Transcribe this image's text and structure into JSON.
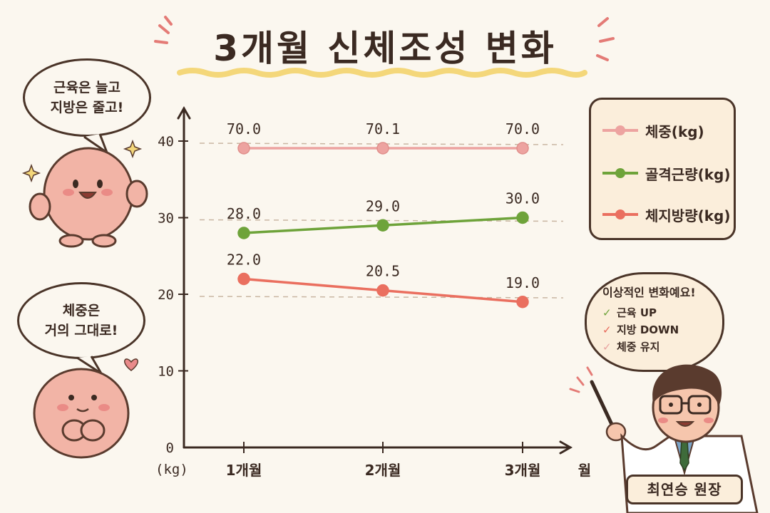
{
  "title": "3개월 신체조성 변화",
  "bubbles": {
    "top": [
      "근육은 늘고",
      "지방은 줄고!"
    ],
    "bottom": [
      "체중은",
      "거의 그대로!"
    ],
    "doctor_heading": "이상적인 변화예요!",
    "doctor_items": [
      {
        "text": "근육 UP",
        "color": "#6ea33a"
      },
      {
        "text": "지방 DOWN",
        "color": "#e8685a"
      },
      {
        "text": "체중 유지",
        "color": "#e9a3a0"
      }
    ]
  },
  "nameplate": "최연승 원장",
  "colors": {
    "weight": "#eda3a0",
    "muscle": "#6ea33a",
    "fat": "#ea6f5f"
  },
  "chart_data": {
    "type": "line",
    "title": "3개월 신체조성 변화",
    "categories": [
      "1개월",
      "2개월",
      "3개월"
    ],
    "xlabel": "월",
    "ylabel": "(kg)",
    "ylim": [
      0,
      50
    ],
    "yticks": [
      0,
      10,
      20,
      30,
      40
    ],
    "grid": "dashed horizontal at 20, 30, 40",
    "legend_position": "top-right",
    "series": [
      {
        "name": "체중(kg)",
        "values": [
          70.0,
          70.1,
          70.0
        ],
        "labels": [
          "70.0",
          "70.1",
          "70.0"
        ],
        "display_note": "axis break"
      },
      {
        "name": "골격근량(kg)",
        "values": [
          28.0,
          29.0,
          30.0
        ],
        "labels": [
          "28.0",
          "29.0",
          "30.0"
        ]
      },
      {
        "name": "체지방량(kg)",
        "values": [
          22.0,
          20.5,
          19.0
        ],
        "labels": [
          "22.0",
          "20.5",
          "19.0"
        ]
      }
    ]
  }
}
